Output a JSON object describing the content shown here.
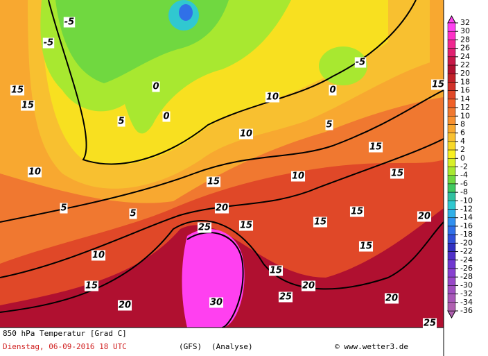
{
  "map": {
    "title": "850 hPa Temperatur [Grad C]",
    "date": "Dienstag, 06-09-2016  18 UTC",
    "model": "(GFS)",
    "run": "(Analyse)",
    "source": "© www.wetter3.de",
    "scale": {
      "ticks": [
        32,
        30,
        28,
        26,
        24,
        22,
        20,
        18,
        16,
        14,
        12,
        10,
        8,
        6,
        4,
        2,
        0,
        -2,
        -4,
        -6,
        -8,
        -10,
        -12,
        -14,
        -16,
        -18,
        -20,
        -22,
        -24,
        -26,
        -28,
        -30,
        -32,
        -34,
        -36
      ],
      "colors": [
        "#ff40f0",
        "#ff30c8",
        "#f02890",
        "#e02070",
        "#c81848",
        "#b01030",
        "#c02028",
        "#d03028",
        "#e04828",
        "#f06028",
        "#f07830",
        "#f89030",
        "#f8a830",
        "#f8c030",
        "#f8d828",
        "#f8f020",
        "#d8f028",
        "#a8e830",
        "#70d840",
        "#40c860",
        "#30c0a0",
        "#30c8d0",
        "#30b0e8",
        "#3090f0",
        "#3070e8",
        "#3050d8",
        "#3030c0",
        "#5030c8",
        "#7038d0",
        "#8840d0",
        "#9848c8",
        "#a050c0",
        "#a858b8",
        "#b060b0"
      ]
    },
    "contour_labels": [
      "15",
      "15",
      "10",
      "5",
      "0",
      "0",
      "-5",
      "-5",
      "5",
      "5",
      "10",
      "10",
      "15",
      "15",
      "15",
      "20",
      "25",
      "30",
      "25",
      "20",
      "20",
      "15",
      "15",
      "15",
      "20",
      "20",
      "25",
      "5",
      "0",
      "-5",
      "10",
      "10",
      "15",
      "15",
      "15",
      "15"
    ]
  }
}
